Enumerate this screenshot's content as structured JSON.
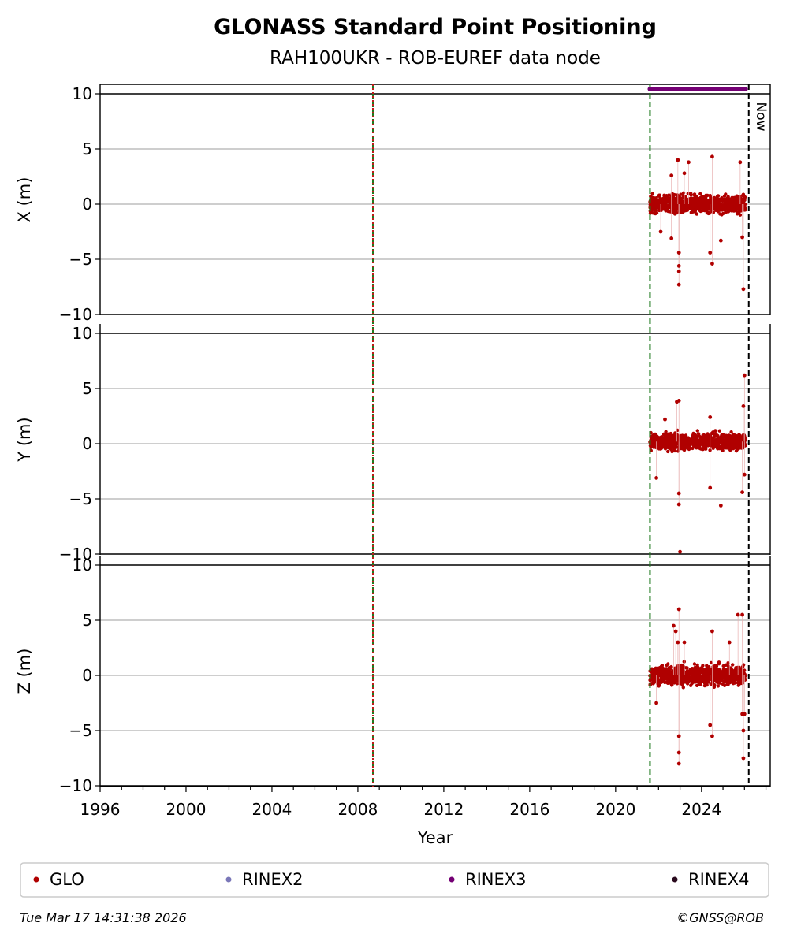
{
  "chart_data": {
    "type": "scatter",
    "title": "GLONASS Standard Point Positioning",
    "subtitle": "RAH100UKR - ROB-EUREF data node",
    "xlabel": "Year",
    "xlim": [
      1996.0,
      2027.2
    ],
    "x_ticks": [
      1996,
      2000,
      2004,
      2008,
      2012,
      2016,
      2020,
      2024
    ],
    "grid": true,
    "panels": [
      {
        "ylabel": "X (m)",
        "ylim": [
          -10,
          10
        ],
        "y_ticks": [
          10,
          5,
          0,
          -5,
          -10
        ],
        "band": {
          "x_start": 2021.6,
          "x_end": 2026.05,
          "center": 0.0,
          "spread": 1.1
        },
        "outliers": [
          [
            2022.9,
            4.0
          ],
          [
            2023.4,
            3.8
          ],
          [
            2023.2,
            2.8
          ],
          [
            2024.5,
            4.3
          ],
          [
            2025.8,
            3.8
          ],
          [
            2022.1,
            -2.5
          ],
          [
            2022.6,
            -3.1
          ],
          [
            2022.95,
            -4.4
          ],
          [
            2022.95,
            -5.6
          ],
          [
            2022.95,
            -6.1
          ],
          [
            2022.95,
            -7.3
          ],
          [
            2024.4,
            -4.4
          ],
          [
            2024.5,
            -5.4
          ],
          [
            2025.95,
            -7.7
          ],
          [
            2025.9,
            -3.0
          ],
          [
            2024.9,
            -3.3
          ],
          [
            2022.6,
            2.6
          ]
        ]
      },
      {
        "ylabel": "Y (m)",
        "ylim": [
          -10,
          10
        ],
        "y_ticks": [
          10,
          5,
          0,
          -5,
          -10
        ],
        "band": {
          "x_start": 2021.6,
          "x_end": 2026.05,
          "center": 0.2,
          "spread": 1.0
        },
        "outliers": [
          [
            2022.85,
            3.8
          ],
          [
            2022.95,
            3.9
          ],
          [
            2026.0,
            6.2
          ],
          [
            2025.95,
            3.4
          ],
          [
            2024.4,
            2.4
          ],
          [
            2022.3,
            2.2
          ],
          [
            2021.9,
            -3.1
          ],
          [
            2022.95,
            -4.5
          ],
          [
            2022.95,
            -5.5
          ],
          [
            2024.4,
            -4.0
          ],
          [
            2024.9,
            -5.6
          ],
          [
            2025.9,
            -4.4
          ],
          [
            2026.0,
            -2.8
          ],
          [
            2023.0,
            -9.8
          ]
        ]
      },
      {
        "ylabel": "Z (m)",
        "ylim": [
          -10,
          10
        ],
        "y_ticks": [
          10,
          5,
          0,
          -5,
          -10
        ],
        "band": {
          "x_start": 2021.6,
          "x_end": 2026.05,
          "center": 0.0,
          "spread": 1.2
        },
        "outliers": [
          [
            2022.95,
            6.0
          ],
          [
            2022.7,
            4.5
          ],
          [
            2022.8,
            4.0
          ],
          [
            2022.9,
            3.0
          ],
          [
            2023.2,
            3.0
          ],
          [
            2024.5,
            4.0
          ],
          [
            2025.7,
            5.5
          ],
          [
            2025.9,
            5.5
          ],
          [
            2025.3,
            3.0
          ],
          [
            2021.9,
            -2.5
          ],
          [
            2022.95,
            -5.5
          ],
          [
            2022.95,
            -7.0
          ],
          [
            2022.95,
            -8.0
          ],
          [
            2024.4,
            -4.5
          ],
          [
            2024.5,
            -5.5
          ],
          [
            2025.9,
            -3.5
          ],
          [
            2026.0,
            -3.5
          ],
          [
            2025.95,
            -5.0
          ],
          [
            2025.95,
            -7.5
          ]
        ]
      }
    ],
    "vlines": [
      {
        "x": 2008.7,
        "color": "#1e7a1e",
        "style": "dashed"
      },
      {
        "x": 2008.7,
        "color": "#c41a1a",
        "style": "dotted"
      },
      {
        "x": 2021.6,
        "color": "#1e7a1e",
        "style": "dashed"
      },
      {
        "x": 2026.2,
        "color": "#000000",
        "style": "dashed"
      }
    ],
    "now_label": "Now",
    "rinex3_bar": {
      "x_start": 2021.6,
      "x_end": 2026.05,
      "color": "#740074"
    },
    "legend": [
      {
        "label": "GLO",
        "color": "#b00000"
      },
      {
        "label": "RINEX2",
        "color": "#7a77b8"
      },
      {
        "label": "RINEX3",
        "color": "#740074"
      },
      {
        "label": "RINEX4",
        "color": "#2a0a1e"
      }
    ],
    "legend_placement": "bottom"
  },
  "footer": {
    "timestamp": "Tue Mar 17 14:31:38 2026",
    "credit": "©GNSS@ROB"
  }
}
